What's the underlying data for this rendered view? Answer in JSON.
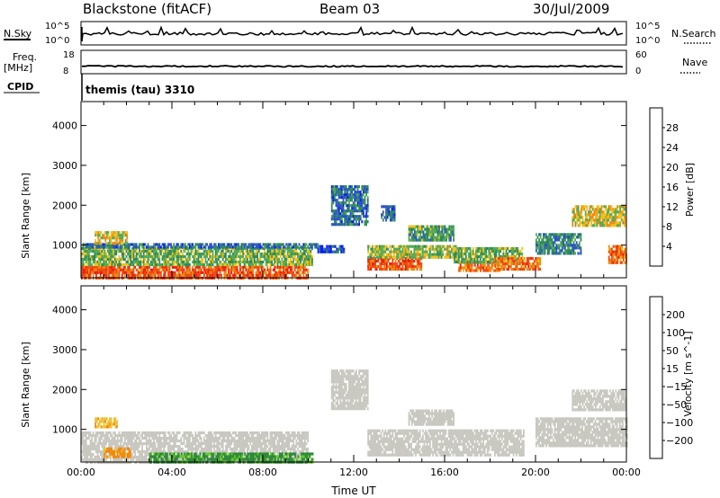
{
  "header": {
    "title": "Blackstone (fitACF)",
    "beam": "Beam 03",
    "date": "30/Jul/2009"
  },
  "top_panels": {
    "nsky_label": "N.Sky",
    "nsky_ticks": [
      "10^5",
      "10^0"
    ],
    "nsearch_label": "N.Search",
    "nsearch_ticks": [
      "10^5",
      "10^0"
    ],
    "freq_label_1": "Freq.",
    "freq_label_2": "[MHz]",
    "freq_ticks": [
      "18",
      "8"
    ],
    "nave_label": "Nave",
    "nave_ticks": [
      "60",
      "0"
    ],
    "cpid_label": "CPID",
    "cpid_text": "themis (tau) 3310"
  },
  "colors": {
    "power_scale": [
      "#0a1ef0",
      "#2a4fd0",
      "#2e8a5a",
      "#55aa55",
      "#f0c020",
      "#f08a10",
      "#f04a10",
      "#e81e10"
    ],
    "velocity_scale": [
      "#1a2ad0",
      "#2a5ab8",
      "#2e8a3a",
      "#66cc22",
      "#c8c8c0",
      "#f0c030",
      "#f08a10",
      "#f04a10",
      "#e81e10"
    ]
  },
  "chart_data": [
    {
      "type": "heatmap",
      "name": "power",
      "ylabel": "Slant Range [km]",
      "xlabel": "",
      "xlim": [
        0,
        24
      ],
      "ylim": [
        180,
        4600
      ],
      "x_ticks": [
        "00:00",
        "04:00",
        "08:00",
        "12:00",
        "16:00",
        "20:00",
        "00:00"
      ],
      "y_ticks": [
        1000,
        2000,
        3000,
        4000
      ],
      "colorbar_label": "Power [dB]",
      "colorbar_ticks": [
        "28",
        "24",
        "20",
        "16",
        "12",
        "8",
        "4"
      ],
      "colorbar_range": [
        0,
        32
      ],
      "regions": [
        {
          "t0": 0.0,
          "t1": 10.0,
          "r0": 180,
          "r1": 480,
          "level": 26
        },
        {
          "t0": 0.0,
          "t1": 10.2,
          "r0": 480,
          "r1": 950,
          "level": 14
        },
        {
          "t0": 0.0,
          "t1": 10.4,
          "r0": 950,
          "r1": 1050,
          "level": 8
        },
        {
          "t0": 0.6,
          "t1": 2.0,
          "r0": 1050,
          "r1": 1350,
          "level": 18
        },
        {
          "t0": 10.4,
          "t1": 11.6,
          "r0": 800,
          "r1": 1000,
          "level": 6
        },
        {
          "t0": 11.0,
          "t1": 12.6,
          "r0": 1500,
          "r1": 2500,
          "level": 8
        },
        {
          "t0": 12.6,
          "t1": 15.0,
          "r0": 400,
          "r1": 700,
          "level": 26
        },
        {
          "t0": 12.6,
          "t1": 16.5,
          "r0": 700,
          "r1": 1000,
          "level": 16
        },
        {
          "t0": 13.2,
          "t1": 13.8,
          "r0": 1600,
          "r1": 2000,
          "level": 8
        },
        {
          "t0": 14.4,
          "t1": 16.4,
          "r0": 1100,
          "r1": 1500,
          "level": 12
        },
        {
          "t0": 16.6,
          "t1": 18.4,
          "r0": 350,
          "r1": 600,
          "level": 24
        },
        {
          "t0": 16.4,
          "t1": 19.4,
          "r0": 600,
          "r1": 950,
          "level": 14
        },
        {
          "t0": 18.2,
          "t1": 20.2,
          "r0": 400,
          "r1": 700,
          "level": 24
        },
        {
          "t0": 20.0,
          "t1": 22.0,
          "r0": 800,
          "r1": 1300,
          "level": 10
        },
        {
          "t0": 21.6,
          "t1": 24.0,
          "r0": 1500,
          "r1": 2000,
          "level": 18
        },
        {
          "t0": 23.2,
          "t1": 24.0,
          "r0": 550,
          "r1": 1000,
          "level": 24
        }
      ]
    },
    {
      "type": "heatmap",
      "name": "velocity",
      "ylabel": "Slant Range [km]",
      "xlabel": "Time UT",
      "xlim": [
        0,
        24
      ],
      "ylim": [
        180,
        4600
      ],
      "x_ticks": [
        "00:00",
        "04:00",
        "08:00",
        "12:00",
        "16:00",
        "20:00",
        "00:00"
      ],
      "y_ticks": [
        1000,
        2000,
        3000,
        4000
      ],
      "colorbar_label": "Velocity [m s^-1]",
      "colorbar_ticks": [
        "200",
        "100",
        "50",
        "15",
        "−15",
        "−50",
        "−100",
        "−200"
      ],
      "colorbar_range": [
        -250,
        250
      ],
      "regions": [
        {
          "t0": 0.0,
          "t1": 10.0,
          "r0": 180,
          "r1": 950,
          "level": 0
        },
        {
          "t0": 3.0,
          "t1": 10.2,
          "r0": 180,
          "r1": 420,
          "level": 60
        },
        {
          "t0": 1.0,
          "t1": 2.2,
          "r0": 300,
          "r1": 550,
          "level": -60
        },
        {
          "t0": 0.6,
          "t1": 1.6,
          "r0": 1050,
          "r1": 1300,
          "level": -40
        },
        {
          "t0": 11.0,
          "t1": 12.6,
          "r0": 1500,
          "r1": 2500,
          "level": 0
        },
        {
          "t0": 12.6,
          "t1": 19.5,
          "r0": 350,
          "r1": 1000,
          "level": 0
        },
        {
          "t0": 14.4,
          "t1": 16.4,
          "r0": 1100,
          "r1": 1500,
          "level": 0
        },
        {
          "t0": 20.0,
          "t1": 24.0,
          "r0": 600,
          "r1": 1300,
          "level": 0
        },
        {
          "t0": 21.6,
          "t1": 24.0,
          "r0": 1500,
          "r1": 2000,
          "level": 0
        }
      ]
    }
  ]
}
